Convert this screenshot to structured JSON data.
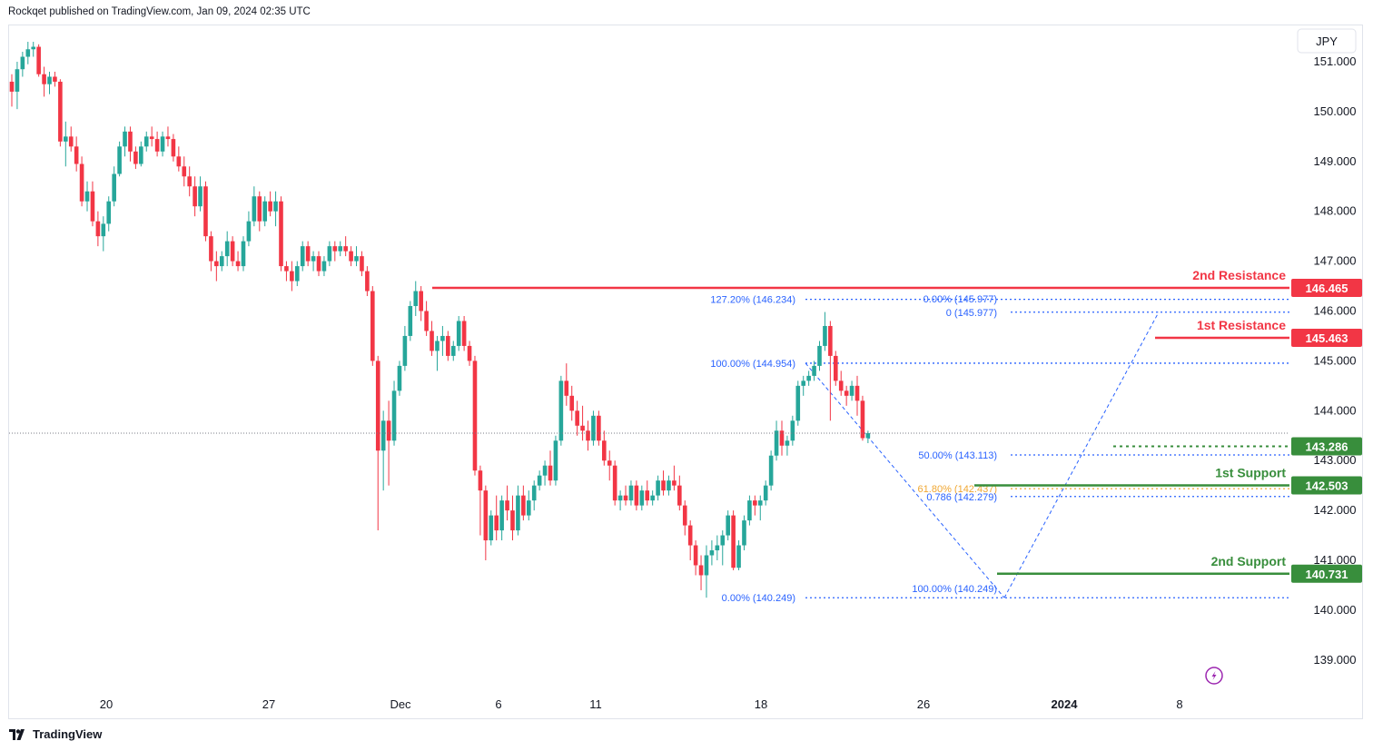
{
  "header": {
    "text": "Rockqet published on TradingView.com, Jan 09, 2024 02:35 UTC"
  },
  "footer": {
    "brand": "TradingView"
  },
  "chart_data": {
    "type": "candlestick",
    "currency": "JPY",
    "ylim": [
      138.4,
      151.8
    ],
    "y_ticks": [
      "139.000",
      "140.000",
      "141.000",
      "142.000",
      "143.000",
      "144.000",
      "145.000",
      "146.000",
      "147.000",
      "148.000",
      "149.000",
      "150.000",
      "151.000"
    ],
    "x_ticks": [
      {
        "label": "20",
        "bold": false
      },
      {
        "label": "27",
        "bold": false
      },
      {
        "label": "Dec",
        "bold": false
      },
      {
        "label": "6",
        "bold": false
      },
      {
        "label": "11",
        "bold": false
      },
      {
        "label": "18",
        "bold": false
      },
      {
        "label": "26",
        "bold": false
      },
      {
        "label": "2024",
        "bold": true
      },
      {
        "label": "8",
        "bold": false
      }
    ],
    "colors": {
      "up": "#26a69a",
      "down": "#f23645",
      "resistance": "#f23645",
      "support": "#388e3c",
      "fib": "#2962ff",
      "fib_golden": "#f0a732"
    },
    "last_price": {
      "value": 143.286,
      "label": "143.286"
    },
    "levels": [
      {
        "name": "2nd Resistance",
        "value": 146.465,
        "label": "146.465",
        "kind": "resistance"
      },
      {
        "name": "1st Resistance",
        "value": 145.463,
        "label": "145.463",
        "kind": "resistance"
      },
      {
        "name": "1st Support",
        "value": 142.503,
        "label": "142.503",
        "kind": "support"
      },
      {
        "name": "2nd Support",
        "value": 140.731,
        "label": "140.731",
        "kind": "support"
      }
    ],
    "fib_labels": [
      {
        "text": "127.20% (146.234)",
        "value": 146.234
      },
      {
        "text": "100.00% (144.954)",
        "value": 144.954
      },
      {
        "text": "0.00% (140.249)",
        "value": 140.249
      },
      {
        "text": "0.00% (145.977)",
        "value": 145.977
      },
      {
        "text": "0 (145.977)",
        "value": 145.977
      },
      {
        "text": "50.00% (143.113)",
        "value": 143.113
      },
      {
        "text": "61.80% (142.437)",
        "value": 142.437
      },
      {
        "text": "0.786 (142.279)",
        "value": 142.279
      },
      {
        "text": "100.00% (140.249)",
        "value": 140.249
      }
    ],
    "candles": [
      [
        150.6,
        150.75,
        150.1,
        150.4
      ],
      [
        150.4,
        151.0,
        150.05,
        150.85
      ],
      [
        150.85,
        151.2,
        150.7,
        151.1
      ],
      [
        151.1,
        151.4,
        150.95,
        151.25
      ],
      [
        151.25,
        151.4,
        151.1,
        151.3
      ],
      [
        151.3,
        151.35,
        150.7,
        150.75
      ],
      [
        150.75,
        150.9,
        150.3,
        150.55
      ],
      [
        150.55,
        150.8,
        150.35,
        150.7
      ],
      [
        150.7,
        150.8,
        150.5,
        150.6
      ],
      [
        150.6,
        150.65,
        149.3,
        149.4
      ],
      [
        149.4,
        149.8,
        148.9,
        149.5
      ],
      [
        149.5,
        149.7,
        149.2,
        149.3
      ],
      [
        149.3,
        149.5,
        148.8,
        148.95
      ],
      [
        148.95,
        149.1,
        148.1,
        148.2
      ],
      [
        148.2,
        148.6,
        148.0,
        148.4
      ],
      [
        148.4,
        148.6,
        147.7,
        147.8
      ],
      [
        147.8,
        148.0,
        147.3,
        147.5
      ],
      [
        147.5,
        147.9,
        147.2,
        147.75
      ],
      [
        147.75,
        148.3,
        147.6,
        148.2
      ],
      [
        148.2,
        148.9,
        148.1,
        148.75
      ],
      [
        148.75,
        149.4,
        148.7,
        149.3
      ],
      [
        149.3,
        149.7,
        149.1,
        149.6
      ],
      [
        149.6,
        149.7,
        149.0,
        149.2
      ],
      [
        149.2,
        149.3,
        148.85,
        148.95
      ],
      [
        148.95,
        149.4,
        148.9,
        149.3
      ],
      [
        149.3,
        149.6,
        149.2,
        149.5
      ],
      [
        149.5,
        149.7,
        149.3,
        149.45
      ],
      [
        149.45,
        149.6,
        149.1,
        149.2
      ],
      [
        149.2,
        149.6,
        149.1,
        149.5
      ],
      [
        149.5,
        149.7,
        149.3,
        149.45
      ],
      [
        149.45,
        149.55,
        149.0,
        149.1
      ],
      [
        149.1,
        149.3,
        148.8,
        148.9
      ],
      [
        148.9,
        149.1,
        148.5,
        148.7
      ],
      [
        148.7,
        148.9,
        148.3,
        148.5
      ],
      [
        148.5,
        148.7,
        147.9,
        148.1
      ],
      [
        148.1,
        148.7,
        148.0,
        148.5
      ],
      [
        148.5,
        148.6,
        147.4,
        147.5
      ],
      [
        147.5,
        147.6,
        146.8,
        147.0
      ],
      [
        147.0,
        147.2,
        146.6,
        146.9
      ],
      [
        146.9,
        147.2,
        146.8,
        147.1
      ],
      [
        147.1,
        147.6,
        146.9,
        147.4
      ],
      [
        147.4,
        147.5,
        146.9,
        147.0
      ],
      [
        147.0,
        147.2,
        146.8,
        146.9
      ],
      [
        146.9,
        147.5,
        146.8,
        147.4
      ],
      [
        147.4,
        148.0,
        147.3,
        147.8
      ],
      [
        147.8,
        148.5,
        147.7,
        148.3
      ],
      [
        148.3,
        148.4,
        147.6,
        147.8
      ],
      [
        147.8,
        148.3,
        147.7,
        148.2
      ],
      [
        148.2,
        148.4,
        147.9,
        148.0
      ],
      [
        148.0,
        148.4,
        147.7,
        148.2
      ],
      [
        148.2,
        148.3,
        146.8,
        146.9
      ],
      [
        146.9,
        147.0,
        146.6,
        146.8
      ],
      [
        146.8,
        147.0,
        146.4,
        146.6
      ],
      [
        146.6,
        147.0,
        146.5,
        146.9
      ],
      [
        146.9,
        147.4,
        146.8,
        147.3
      ],
      [
        147.3,
        147.4,
        146.9,
        147.0
      ],
      [
        147.0,
        147.2,
        146.8,
        147.1
      ],
      [
        147.1,
        147.2,
        146.7,
        146.8
      ],
      [
        146.8,
        147.1,
        146.7,
        147.0
      ],
      [
        147.0,
        147.4,
        146.9,
        147.3
      ],
      [
        147.3,
        147.4,
        147.0,
        147.2
      ],
      [
        147.2,
        147.4,
        147.1,
        147.3
      ],
      [
        147.3,
        147.5,
        147.1,
        147.2
      ],
      [
        147.2,
        147.3,
        146.9,
        147.0
      ],
      [
        147.0,
        147.3,
        146.9,
        147.1
      ],
      [
        147.1,
        147.2,
        146.7,
        146.8
      ],
      [
        146.8,
        146.9,
        146.3,
        146.4
      ],
      [
        146.4,
        146.5,
        144.9,
        145.0
      ],
      [
        145.0,
        145.1,
        141.6,
        143.2
      ],
      [
        143.2,
        144.0,
        142.4,
        143.8
      ],
      [
        143.8,
        144.2,
        142.5,
        143.4
      ],
      [
        143.4,
        144.6,
        143.3,
        144.4
      ],
      [
        144.4,
        145.0,
        144.3,
        144.9
      ],
      [
        144.9,
        145.7,
        144.8,
        145.5
      ],
      [
        145.5,
        146.2,
        145.4,
        146.1
      ],
      [
        146.1,
        146.6,
        145.9,
        146.4
      ],
      [
        146.4,
        146.5,
        145.8,
        146.0
      ],
      [
        146.0,
        146.2,
        145.5,
        145.6
      ],
      [
        145.6,
        145.8,
        145.1,
        145.2
      ],
      [
        145.2,
        145.5,
        144.8,
        145.4
      ],
      [
        145.4,
        145.7,
        145.1,
        145.5
      ],
      [
        145.5,
        145.6,
        145.0,
        145.1
      ],
      [
        145.1,
        145.4,
        145.0,
        145.3
      ],
      [
        145.3,
        145.9,
        145.2,
        145.8
      ],
      [
        145.8,
        145.9,
        145.2,
        145.3
      ],
      [
        145.3,
        145.4,
        144.9,
        145.0
      ],
      [
        145.0,
        145.1,
        142.7,
        142.8
      ],
      [
        142.8,
        142.9,
        141.5,
        142.4
      ],
      [
        142.4,
        142.5,
        141.0,
        141.4
      ],
      [
        141.4,
        142.0,
        141.3,
        141.9
      ],
      [
        141.9,
        142.3,
        141.4,
        141.6
      ],
      [
        141.6,
        142.3,
        141.4,
        142.2
      ],
      [
        142.2,
        142.5,
        141.8,
        142.0
      ],
      [
        142.0,
        142.3,
        141.4,
        141.6
      ],
      [
        141.6,
        142.5,
        141.5,
        142.3
      ],
      [
        142.3,
        142.5,
        141.8,
        141.9
      ],
      [
        141.9,
        142.4,
        141.8,
        142.2
      ],
      [
        142.2,
        142.6,
        142.0,
        142.5
      ],
      [
        142.5,
        142.8,
        142.4,
        142.7
      ],
      [
        142.7,
        143.0,
        142.5,
        142.9
      ],
      [
        142.9,
        143.2,
        142.5,
        142.6
      ],
      [
        142.6,
        143.5,
        142.5,
        143.4
      ],
      [
        143.4,
        144.7,
        143.3,
        144.6
      ],
      [
        144.6,
        144.95,
        144.1,
        144.3
      ],
      [
        144.3,
        144.5,
        143.8,
        144.0
      ],
      [
        144.0,
        144.2,
        143.5,
        143.7
      ],
      [
        143.7,
        144.1,
        143.4,
        143.6
      ],
      [
        143.6,
        143.8,
        143.2,
        143.4
      ],
      [
        143.4,
        144.0,
        143.3,
        143.9
      ],
      [
        143.9,
        144.0,
        143.3,
        143.4
      ],
      [
        143.4,
        143.6,
        142.9,
        143.0
      ],
      [
        143.0,
        143.2,
        142.6,
        142.9
      ],
      [
        142.9,
        143.0,
        142.1,
        142.2
      ],
      [
        142.2,
        142.4,
        142.0,
        142.3
      ],
      [
        142.3,
        142.5,
        142.1,
        142.2
      ],
      [
        142.2,
        142.6,
        142.1,
        142.5
      ],
      [
        142.5,
        142.6,
        142.0,
        142.1
      ],
      [
        142.1,
        142.5,
        142.0,
        142.4
      ],
      [
        142.4,
        142.6,
        142.1,
        142.2
      ],
      [
        142.2,
        142.4,
        142.1,
        142.3
      ],
      [
        142.3,
        142.7,
        142.2,
        142.6
      ],
      [
        142.6,
        142.8,
        142.3,
        142.4
      ],
      [
        142.4,
        142.7,
        142.3,
        142.6
      ],
      [
        142.6,
        142.9,
        142.4,
        142.5
      ],
      [
        142.5,
        142.7,
        142.0,
        142.1
      ],
      [
        142.1,
        142.2,
        141.5,
        141.7
      ],
      [
        141.7,
        141.8,
        141.0,
        141.3
      ],
      [
        141.3,
        141.4,
        140.7,
        140.9
      ],
      [
        140.9,
        141.1,
        140.4,
        140.7
      ],
      [
        140.7,
        141.3,
        140.25,
        141.1
      ],
      [
        141.1,
        141.4,
        140.9,
        141.2
      ],
      [
        141.2,
        141.5,
        141.0,
        141.3
      ],
      [
        141.3,
        141.6,
        140.9,
        141.5
      ],
      [
        141.5,
        142.0,
        141.4,
        141.9
      ],
      [
        141.9,
        142.0,
        140.8,
        140.85
      ],
      [
        140.85,
        141.4,
        140.8,
        141.3
      ],
      [
        141.3,
        141.9,
        141.2,
        141.8
      ],
      [
        141.8,
        142.3,
        141.7,
        142.2
      ],
      [
        142.2,
        142.3,
        141.9,
        142.1
      ],
      [
        142.1,
        142.3,
        141.8,
        142.2
      ],
      [
        142.2,
        142.6,
        142.1,
        142.5
      ],
      [
        142.5,
        143.2,
        142.4,
        143.1
      ],
      [
        143.1,
        143.8,
        143.0,
        143.6
      ],
      [
        143.6,
        143.8,
        143.1,
        143.3
      ],
      [
        143.3,
        143.5,
        143.1,
        143.4
      ],
      [
        143.4,
        143.9,
        143.3,
        143.8
      ],
      [
        143.8,
        144.6,
        143.7,
        144.5
      ],
      [
        144.5,
        144.7,
        144.3,
        144.6
      ],
      [
        144.6,
        144.8,
        144.5,
        144.7
      ],
      [
        144.7,
        145.0,
        144.6,
        144.9
      ],
      [
        144.9,
        145.4,
        144.8,
        145.3
      ],
      [
        145.3,
        145.98,
        145.2,
        145.7
      ],
      [
        145.7,
        145.8,
        143.8,
        145.1
      ],
      [
        145.1,
        145.2,
        144.5,
        144.6
      ],
      [
        144.6,
        144.8,
        144.3,
        144.4
      ],
      [
        144.4,
        144.5,
        144.1,
        144.3
      ],
      [
        144.3,
        144.6,
        144.2,
        144.5
      ],
      [
        144.5,
        144.7,
        143.9,
        144.2
      ],
      [
        144.2,
        144.3,
        143.4,
        143.45
      ],
      [
        143.45,
        143.6,
        143.35,
        143.55
      ]
    ]
  }
}
